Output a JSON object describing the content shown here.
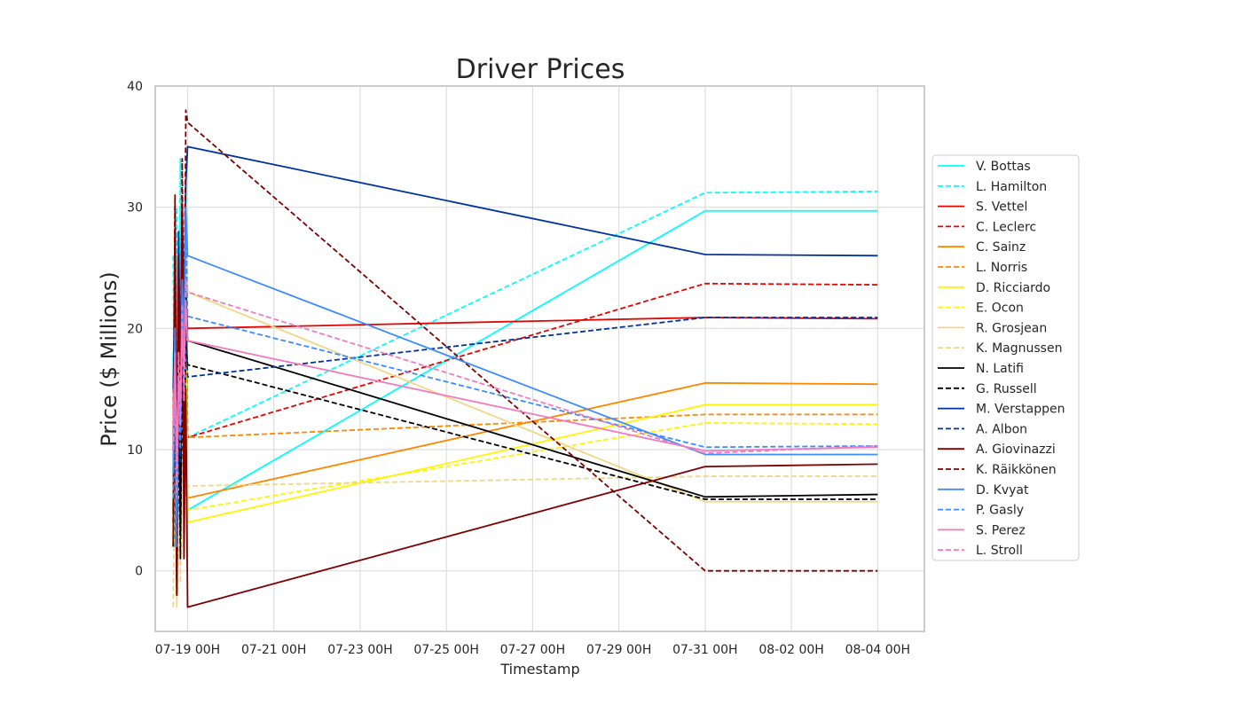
{
  "chart_data": {
    "type": "line",
    "title": "Driver Prices",
    "xlabel": "Timestamp",
    "ylabel": "Price ($ Millions)",
    "x_ticks": [
      "07-19 00H",
      "07-21 00H",
      "07-23 00H",
      "07-25 00H",
      "07-27 00H",
      "07-29 00H",
      "07-31 00H",
      "08-02 00H",
      "08-04 00H"
    ],
    "y_ticks": [
      "0",
      "10",
      "20",
      "30",
      "40"
    ],
    "x_range_hours": [
      -18,
      410
    ],
    "ylim": [
      -5,
      40
    ],
    "grid": true,
    "legend_position": "right",
    "x": [
      "07-18 16H",
      "07-18 17H",
      "07-18 18H",
      "07-18 19H",
      "07-18 20H",
      "07-18 21H",
      "07-18 22H",
      "07-18 23H",
      "07-19 00H",
      "07-31 00H",
      "08-04 00H"
    ],
    "series": [
      {
        "name": "V. Bottas",
        "color": "#00ffff",
        "dash": "solid",
        "values": [
          18,
          2,
          26,
          8,
          30,
          12,
          24,
          28,
          5,
          29.7,
          29.7
        ]
      },
      {
        "name": "L. Hamilton",
        "color": "#00ffff",
        "dash": "dashed",
        "values": [
          26,
          6,
          30,
          12,
          34,
          16,
          28,
          32,
          11,
          31.2,
          31.3
        ]
      },
      {
        "name": "S. Vettel",
        "color": "#e10600",
        "dash": "solid",
        "values": [
          10,
          28,
          6,
          24,
          14,
          29,
          18,
          22,
          20,
          20.9,
          20.8
        ]
      },
      {
        "name": "C. Leclerc",
        "color": "#e10600",
        "dash": "dashed",
        "values": [
          12,
          30,
          8,
          26,
          18,
          31,
          22,
          25,
          11,
          23.7,
          23.6
        ]
      },
      {
        "name": "C. Sainz",
        "color": "#ff8700",
        "dash": "solid",
        "values": [
          4,
          16,
          -2,
          12,
          3,
          14,
          8,
          10,
          6,
          15.5,
          15.4
        ]
      },
      {
        "name": "L. Norris",
        "color": "#ff8700",
        "dash": "dashed",
        "values": [
          2,
          14,
          -1,
          10,
          5,
          13,
          7,
          12,
          11,
          12.9,
          12.9
        ]
      },
      {
        "name": "D. Ricciardo",
        "color": "#fff500",
        "dash": "solid",
        "values": [
          6,
          22,
          0,
          18,
          4,
          20,
          10,
          26,
          4,
          13.7,
          13.7
        ]
      },
      {
        "name": "E. Ocon",
        "color": "#fff500",
        "dash": "dashed",
        "values": [
          3,
          18,
          -2,
          15,
          2,
          17,
          8,
          21,
          5,
          12.2,
          12.1
        ]
      },
      {
        "name": "R. Grosjean",
        "color": "#f0d787",
        "dash": "solid",
        "values": [
          8,
          24,
          -3,
          20,
          6,
          22,
          12,
          30,
          23,
          5.7,
          5.7
        ]
      },
      {
        "name": "K. Magnussen",
        "color": "#f0d787",
        "dash": "dashed",
        "values": [
          -3,
          10,
          2,
          14,
          -1,
          12,
          4,
          8,
          7,
          7.8,
          7.8
        ]
      },
      {
        "name": "N. Latifi",
        "color": "#000000",
        "dash": "solid",
        "values": [
          5,
          20,
          -1,
          17,
          3,
          21,
          9,
          23,
          19,
          6.1,
          6.3
        ]
      },
      {
        "name": "G. Russell",
        "color": "#000000",
        "dash": "dashed",
        "values": [
          2,
          15,
          -2,
          13,
          1,
          17,
          6,
          19,
          17,
          5.9,
          5.9
        ]
      },
      {
        "name": "M. Verstappen",
        "color": "#0032a0",
        "dash": "solid",
        "values": [
          15,
          22,
          10,
          28,
          14,
          30,
          20,
          32,
          35,
          26.1,
          26.0
        ]
      },
      {
        "name": "A. Albon",
        "color": "#0032a0",
        "dash": "dashed",
        "values": [
          10,
          18,
          6,
          22,
          9,
          20,
          13,
          21,
          16,
          20.9,
          20.9
        ]
      },
      {
        "name": "A. Giovinazzi",
        "color": "#800000",
        "dash": "solid",
        "values": [
          2,
          28,
          -2,
          24,
          10,
          30,
          1,
          15,
          -3,
          8.6,
          8.8
        ]
      },
      {
        "name": "K. Räikkönen",
        "color": "#800000",
        "dash": "dashed",
        "values": [
          4,
          31,
          0,
          26,
          12,
          34,
          6,
          38,
          37,
          0,
          0
        ]
      },
      {
        "name": "D. Kvyat",
        "color": "#3c8cff",
        "dash": "solid",
        "values": [
          8,
          20,
          4,
          16,
          12,
          24,
          18,
          30,
          26,
          9.6,
          9.6
        ]
      },
      {
        "name": "P. Gasly",
        "color": "#3c8cff",
        "dash": "dashed",
        "values": [
          6,
          18,
          2,
          14,
          10,
          20,
          15,
          28,
          21,
          10.2,
          10.3
        ]
      },
      {
        "name": "S. Perez",
        "color": "#f07cbf",
        "dash": "solid",
        "values": [
          12,
          18,
          9,
          16,
          14,
          20,
          17,
          22,
          19,
          9.9,
          10.2
        ]
      },
      {
        "name": "L. Stroll",
        "color": "#f07cbf",
        "dash": "dashed",
        "values": [
          10,
          16,
          6,
          18,
          12,
          22,
          14,
          24,
          23,
          9.7,
          10.3
        ]
      }
    ]
  }
}
